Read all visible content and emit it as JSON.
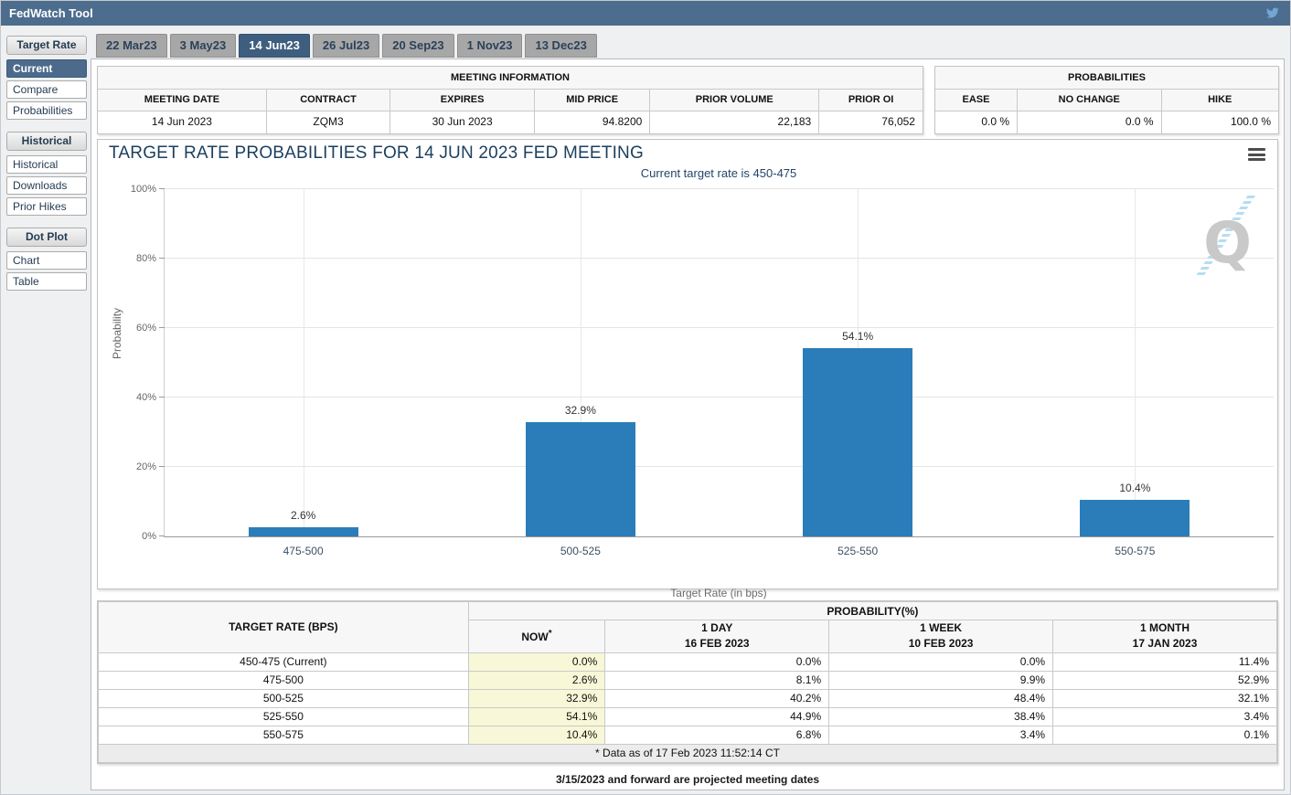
{
  "app": {
    "title": "FedWatch Tool"
  },
  "sidebar": {
    "sections": [
      {
        "header": "Target Rate",
        "items": [
          {
            "label": "Current",
            "active": true
          },
          {
            "label": "Compare"
          },
          {
            "label": "Probabilities"
          }
        ]
      },
      {
        "header": "Historical",
        "items": [
          {
            "label": "Historical"
          },
          {
            "label": "Downloads"
          },
          {
            "label": "Prior Hikes"
          }
        ]
      },
      {
        "header": "Dot Plot",
        "items": [
          {
            "label": "Chart"
          },
          {
            "label": "Table"
          }
        ]
      }
    ]
  },
  "tabs": [
    {
      "label": "22 Mar23"
    },
    {
      "label": "3 May23"
    },
    {
      "label": "14 Jun23",
      "active": true
    },
    {
      "label": "26 Jul23"
    },
    {
      "label": "20 Sep23"
    },
    {
      "label": "1 Nov23"
    },
    {
      "label": "13 Dec23"
    }
  ],
  "meeting_info": {
    "title": "MEETING INFORMATION",
    "columns": [
      "MEETING DATE",
      "CONTRACT",
      "EXPIRES",
      "MID PRICE",
      "PRIOR VOLUME",
      "PRIOR OI"
    ],
    "values": [
      "14 Jun 2023",
      "ZQM3",
      "30 Jun 2023",
      "94.8200",
      "22,183",
      "76,052"
    ]
  },
  "probabilities_panel": {
    "title": "PROBABILITIES",
    "columns": [
      "EASE",
      "NO CHANGE",
      "HIKE"
    ],
    "values": [
      "0.0 %",
      "0.0 %",
      "100.0 %"
    ]
  },
  "chart_data": {
    "type": "bar",
    "title": "TARGET RATE PROBABILITIES FOR 14 JUN 2023 FED MEETING",
    "subtitle": "Current target rate is 450-475",
    "categories": [
      "475-500",
      "500-525",
      "525-550",
      "550-575"
    ],
    "values": [
      2.6,
      32.9,
      54.1,
      10.4
    ],
    "value_labels": [
      "2.6%",
      "32.9%",
      "54.1%",
      "10.4%"
    ],
    "xlabel": "Target Rate (in bps)",
    "ylabel": "Probability",
    "ylim": [
      0,
      100
    ],
    "yticks": [
      "0%",
      "20%",
      "40%",
      "60%",
      "80%",
      "100%"
    ],
    "grid": true,
    "legend": "none",
    "bar_color": "#2a7db8"
  },
  "bottom_table": {
    "col1_header": "TARGET RATE (BPS)",
    "group_header": "PROBABILITY(%)",
    "sub_headers": [
      {
        "line1": "NOW",
        "sup": "*",
        "line2": ""
      },
      {
        "line1": "1 DAY",
        "line2": "16 FEB 2023"
      },
      {
        "line1": "1 WEEK",
        "line2": "10 FEB 2023"
      },
      {
        "line1": "1 MONTH",
        "line2": "17 JAN 2023"
      }
    ],
    "rows": [
      {
        "rate": "450-475 (Current)",
        "now": "0.0%",
        "day": "0.0%",
        "week": "0.0%",
        "month": "11.4%"
      },
      {
        "rate": "475-500",
        "now": "2.6%",
        "day": "8.1%",
        "week": "9.9%",
        "month": "52.9%"
      },
      {
        "rate": "500-525",
        "now": "32.9%",
        "day": "40.2%",
        "week": "48.4%",
        "month": "32.1%"
      },
      {
        "rate": "525-550",
        "now": "54.1%",
        "day": "44.9%",
        "week": "38.4%",
        "month": "3.4%"
      },
      {
        "rate": "550-575",
        "now": "10.4%",
        "day": "6.8%",
        "week": "3.4%",
        "month": "0.1%"
      }
    ],
    "footnote": "* Data as of 17 Feb 2023 11:52:14 CT"
  },
  "footer_note": "3/15/2023 and forward are projected meeting dates",
  "colors": {
    "topbar": "#4d6d8e",
    "active_nav": "#4c6b8c",
    "active_tab": "#3e5e7f",
    "bar": "#2a7db8",
    "now_highlight": "#f8f7d7",
    "twitter_blue": "#71a7d7"
  }
}
